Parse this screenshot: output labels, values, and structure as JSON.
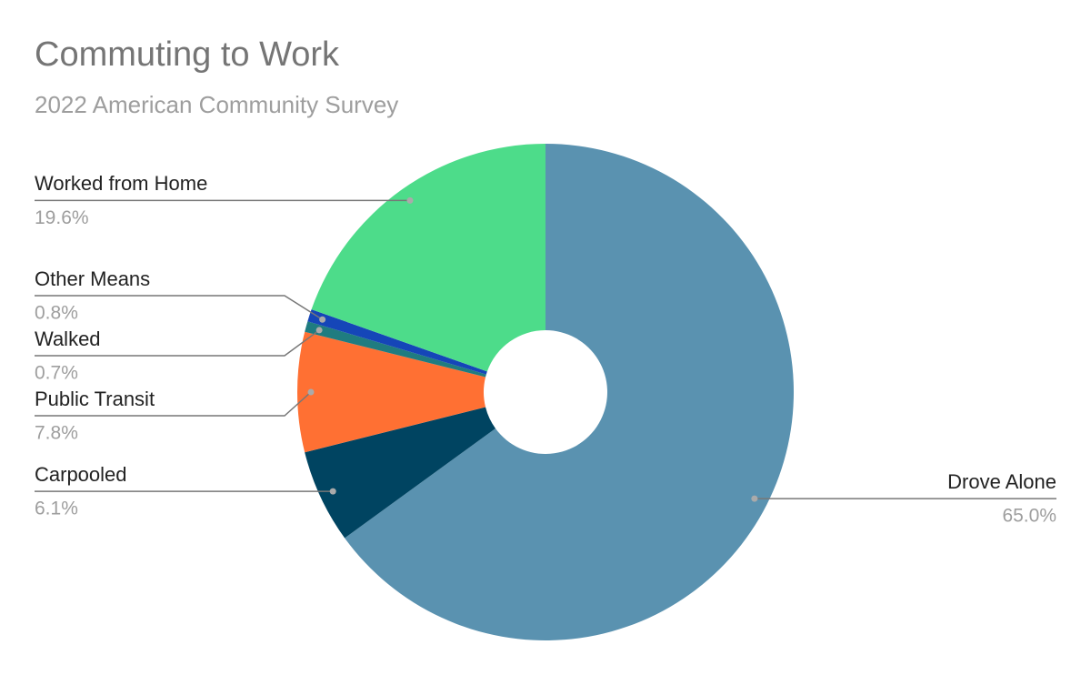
{
  "chart_data": {
    "type": "pie",
    "title": "Commuting to Work",
    "subtitle": "2022 American Community Survey",
    "categories": [
      "Drove Alone",
      "Carpooled",
      "Public Transit",
      "Walked",
      "Other Means",
      "Worked from Home"
    ],
    "values": [
      65.0,
      6.1,
      7.8,
      0.7,
      0.8,
      19.6
    ],
    "value_labels": [
      "65.0%",
      "6.1%",
      "7.8%",
      "0.7%",
      "0.8%",
      "19.6%"
    ],
    "colors": [
      "#5a92b0",
      "#004461",
      "#ff7033",
      "#1f7c80",
      "#1546b8",
      "#4ddc8a"
    ]
  }
}
